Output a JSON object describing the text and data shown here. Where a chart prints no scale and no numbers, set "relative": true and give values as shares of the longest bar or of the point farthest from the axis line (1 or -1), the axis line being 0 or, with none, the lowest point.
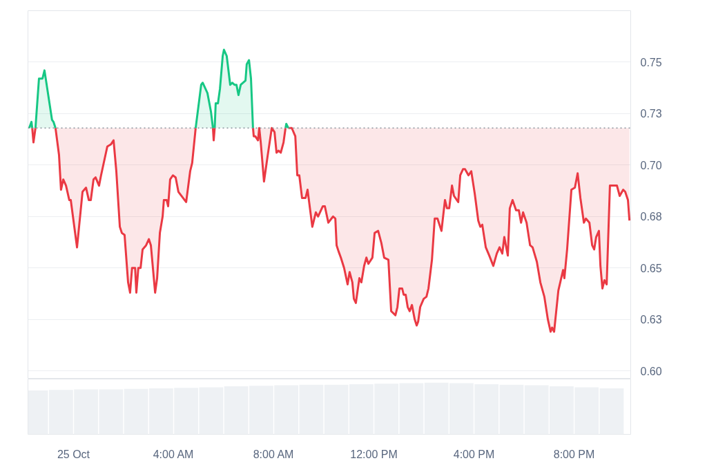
{
  "chart_data": [
    {
      "type": "line",
      "xlim": [
        -1.82,
        22.26
      ],
      "ylim": [
        0.596,
        0.775
      ],
      "tick_labels": "y",
      "yticks": [
        0.75,
        {
          "value": 0.725,
          "label": "0.73"
        },
        {
          "value": 0.7,
          "label": "0.70"
        },
        {
          "value": 0.675,
          "label": "0.68"
        },
        0.65,
        {
          "value": 0.625,
          "label": "0.63"
        },
        {
          "value": 0.6,
          "label": "0.60"
        }
      ],
      "grid": "y",
      "line_style": "solid",
      "ref_lines": [
        {
          "axis": "y",
          "value": 0.718,
          "color": "#8a929c",
          "line_style": "dotted"
        }
      ],
      "series": [
        {
          "color": "#ea3943",
          "x": [
            -1.65,
            -1.6,
            -1.52,
            -1.4,
            -0.72,
            -0.58,
            -0.5,
            -0.41,
            -0.3,
            -0.17,
            -0.11,
            0.14,
            0.36,
            0.5,
            0.61,
            0.69,
            0.8,
            0.88,
            1.02,
            1.1,
            1.35,
            1.49,
            1.6,
            1.71,
            1.85,
            1.93,
            2.04,
            2.18,
            2.26,
            2.34,
            2.46,
            2.51,
            2.59,
            2.68,
            2.76,
            2.9,
            3.01,
            3.09,
            3.26,
            3.34,
            3.45,
            3.56,
            3.61,
            3.72,
            3.78,
            3.86,
            3.97,
            4.08,
            4.19,
            4.5,
            4.66,
            4.74,
            4.88,
            5.2,
            5.57,
            5.6,
            5.64,
            6.5,
            7.17,
            7.2,
            7.26,
            7.37,
            7.42,
            7.48,
            7.61,
            7.75,
            7.92,
            8.03,
            8.11,
            8.19,
            8.28,
            8.39,
            8.47,
            8.5,
            8.58,
            8.72,
            8.86,
            8.94,
            9.02,
            9.13,
            9.27,
            9.35,
            9.54,
            9.68,
            9.77,
            9.96,
            10.04,
            10.18,
            10.37,
            10.46,
            10.51,
            10.59,
            10.68,
            10.81,
            10.95,
            11.03,
            11.14,
            11.2,
            11.28,
            11.42,
            11.5,
            11.61,
            11.7,
            11.78,
            11.94,
            12.03,
            12.17,
            12.3,
            12.41,
            12.58,
            12.69,
            12.86,
            12.94,
            13.02,
            13.13,
            13.19,
            13.27,
            13.35,
            13.43,
            13.52,
            13.63,
            13.71,
            13.77,
            13.85,
            13.99,
            14.1,
            14.18,
            14.32,
            14.43,
            14.54,
            14.7,
            14.84,
            14.92,
            15.01,
            15.12,
            15.2,
            15.37,
            15.45,
            15.56,
            15.64,
            15.78,
            15.89,
            16.03,
            16.17,
            16.25,
            16.33,
            16.47,
            16.61,
            16.77,
            16.91,
            17.02,
            17.13,
            17.21,
            17.35,
            17.43,
            17.54,
            17.68,
            17.79,
            17.88,
            17.96,
            18.1,
            18.24,
            18.34,
            18.51,
            18.65,
            18.81,
            18.95,
            19.06,
            19.12,
            19.2,
            19.37,
            19.56,
            19.61,
            19.72,
            19.89,
            20.03,
            20.14,
            20.25,
            20.39,
            20.47,
            20.61,
            20.72,
            20.8,
            20.88,
            20.99,
            21.05,
            21.13,
            21.21,
            21.3,
            21.43,
            21.57,
            21.71,
            21.82,
            21.96,
            22.04,
            22.15,
            22.21
          ],
          "values": [
            0.718,
            0.711,
            0.718,
            null,
            0.718,
            0.705,
            0.688,
            0.693,
            0.69,
            0.683,
            0.683,
            0.66,
            0.687,
            0.689,
            0.683,
            0.683,
            0.693,
            0.694,
            0.69,
            0.695,
            0.709,
            0.71,
            0.712,
            0.697,
            0.67,
            0.667,
            0.666,
            0.643,
            0.638,
            0.65,
            0.65,
            0.638,
            0.65,
            0.65,
            0.659,
            0.661,
            0.664,
            0.661,
            0.638,
            0.645,
            0.667,
            0.675,
            0.683,
            0.683,
            0.68,
            0.693,
            0.695,
            0.694,
            0.687,
            0.682,
            0.697,
            0.701,
            0.718,
            null,
            0.718,
            0.712,
            0.718,
            null,
            0.718,
            0.714,
            0.714,
            0.712,
            0.718,
            0.711,
            0.692,
            0.704,
            0.718,
            0.716,
            0.706,
            0.707,
            0.706,
            0.711,
            0.718,
            null,
            0.718,
            0.718,
            0.714,
            0.695,
            0.695,
            0.684,
            0.684,
            0.688,
            0.67,
            0.677,
            0.675,
            0.68,
            0.68,
            0.672,
            0.675,
            0.674,
            0.661,
            0.658,
            0.655,
            0.65,
            0.642,
            0.648,
            0.643,
            0.635,
            0.633,
            0.645,
            0.643,
            0.651,
            0.655,
            0.652,
            0.655,
            0.667,
            0.668,
            0.662,
            0.655,
            0.654,
            0.629,
            0.627,
            0.631,
            0.64,
            0.64,
            0.637,
            0.637,
            0.631,
            0.629,
            0.632,
            0.625,
            0.622,
            0.624,
            0.631,
            0.635,
            0.636,
            0.64,
            0.654,
            0.674,
            0.674,
            0.668,
            0.683,
            0.679,
            0.679,
            0.69,
            0.685,
            0.682,
            0.695,
            0.698,
            0.698,
            0.695,
            0.697,
            0.686,
            0.673,
            0.67,
            0.671,
            0.66,
            0.656,
            0.651,
            0.657,
            0.66,
            0.657,
            0.665,
            0.656,
            0.679,
            0.683,
            0.678,
            0.678,
            0.672,
            0.677,
            0.672,
            0.661,
            0.66,
            0.653,
            0.643,
            0.636,
            0.625,
            0.619,
            0.621,
            0.619,
            0.639,
            0.649,
            0.645,
            0.659,
            0.688,
            0.689,
            0.696,
            0.684,
            0.672,
            0.674,
            0.672,
            0.661,
            0.659,
            0.665,
            0.668,
            0.651,
            0.64,
            0.644,
            0.642,
            0.69,
            0.69,
            0.69,
            0.685,
            0.688,
            0.687,
            0.683,
            0.673
          ]
        },
        {
          "color": "#16c784",
          "x": [
            -1.77,
            -1.68,
            -1.65,
            -1.6,
            -1.52,
            -1.38,
            -1.24,
            -1.16,
            -0.86,
            -0.8,
            -0.72,
            2,
            4.88,
            5.1,
            5.16,
            5.35,
            5.49,
            5.57,
            5.6,
            5.64,
            5.68,
            5.77,
            5.85,
            5.96,
            6.01,
            6.12,
            6.26,
            6.34,
            6.43,
            6.51,
            6.59,
            6.68,
            6.87,
            6.92,
            7.01,
            7.09,
            7.17,
            8,
            8.47,
            8.5,
            8.58
          ],
          "values": [
            0.718,
            0.721,
            0.718,
            null,
            0.718,
            0.742,
            0.742,
            0.746,
            0.722,
            0.721,
            0.718,
            null,
            0.718,
            0.739,
            0.74,
            0.735,
            0.726,
            0.718,
            null,
            0.718,
            0.73,
            0.73,
            0.737,
            0.753,
            0.756,
            0.753,
            0.739,
            0.74,
            0.739,
            0.739,
            0.734,
            0.739,
            0.741,
            0.749,
            0.751,
            0.742,
            0.718,
            null,
            0.718,
            0.72,
            0.718
          ]
        }
      ]
    },
    {
      "type": "bar",
      "relative": true,
      "color": "#eef1f4",
      "xlim": [
        -1.82,
        22.26
      ],
      "xticks": [
        {
          "value": 0,
          "label": "25 Oct"
        },
        {
          "value": 4,
          "label": "4:00 AM"
        },
        {
          "value": 8,
          "label": "8:00 AM"
        },
        {
          "value": 12,
          "label": "12:00 PM"
        },
        {
          "value": 16,
          "label": "4:00 PM"
        },
        {
          "value": 20,
          "label": "8:00 PM"
        }
      ],
      "x": [
        -1.5,
        -0.5,
        0.5,
        1.5,
        2.5,
        3.5,
        4.5,
        5.5,
        6.5,
        7.5,
        8.5,
        9.5,
        10.5,
        11.5,
        12.5,
        13.5,
        14.5,
        15.5,
        16.5,
        17.5,
        18.5,
        19.5,
        20.5,
        21.5
      ],
      "values": [
        0.85,
        0.86,
        0.87,
        0.87,
        0.88,
        0.89,
        0.9,
        0.91,
        0.93,
        0.94,
        0.95,
        0.96,
        0.96,
        0.97,
        0.98,
        0.99,
        1.0,
        0.99,
        0.97,
        0.96,
        0.95,
        0.93,
        0.91,
        0.89
      ]
    }
  ]
}
